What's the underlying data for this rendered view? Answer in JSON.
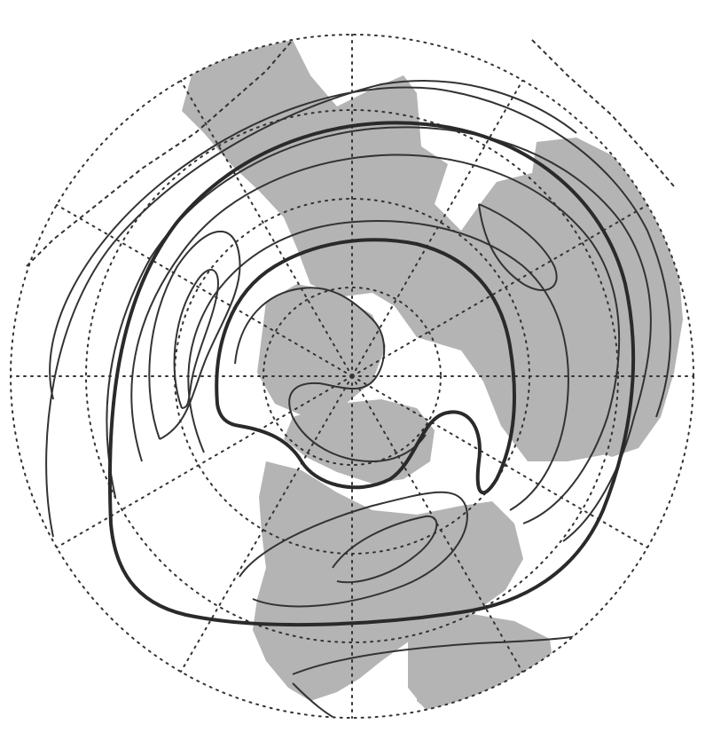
{
  "figure": {
    "projection": "north-polar-stereographic",
    "style": "monochrome",
    "land_color": "#b4b4b4",
    "ocean_color": "#ffffff",
    "graticule_color": "#333333",
    "graticule_style": "dotted",
    "contour_color": "#333333",
    "emphasized_contour_color": "#2a2a2a",
    "text_labels": []
  },
  "map_layers": [
    "land-masses",
    "latitude-circles",
    "longitude-meridians",
    "height-contours",
    "emphasized-contours"
  ]
}
